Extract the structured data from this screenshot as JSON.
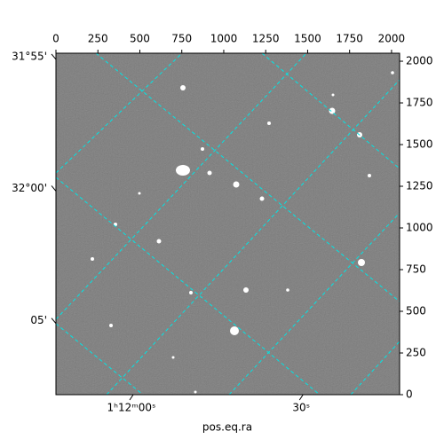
{
  "chart_data": {
    "type": "image",
    "xlabel": "pos.eq.ra",
    "xlim": [
      0,
      2048
    ],
    "ylim": [
      0,
      2048
    ],
    "xticks": [
      0,
      250,
      500,
      750,
      1000,
      1250,
      1500,
      1750,
      2000
    ],
    "yticks": [
      0,
      250,
      500,
      750,
      1000,
      1250,
      1500,
      1750,
      2000
    ],
    "ra_ticks": [
      {
        "value": 450,
        "label": "1ʰ12ᵐ00ˢ"
      },
      {
        "value": 1462,
        "label": "30ˢ"
      }
    ],
    "dec_ticks": [
      {
        "value": 2027,
        "label": "31°55'"
      },
      {
        "value": 1237,
        "label": "32°00'"
      },
      {
        "value": 443,
        "label": "05'"
      }
    ],
    "grid": true
  }
}
